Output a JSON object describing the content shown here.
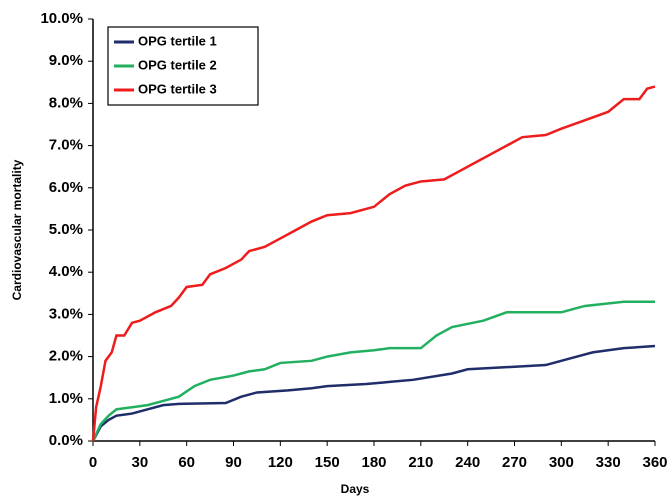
{
  "chart_data": {
    "type": "line",
    "x_label": "Days",
    "y_label": "Cardiovascular mortality",
    "xlim": [
      0,
      360
    ],
    "xticks": [
      0,
      30,
      60,
      90,
      120,
      150,
      180,
      210,
      240,
      270,
      300,
      330,
      360
    ],
    "ylim": [
      0,
      10
    ],
    "yticks": [
      {
        "value": 0,
        "label": "0.0%"
      },
      {
        "value": 1,
        "label": "1.0%"
      },
      {
        "value": 2,
        "label": "2.0%"
      },
      {
        "value": 3,
        "label": "3.0%"
      },
      {
        "value": 4,
        "label": "4.0%"
      },
      {
        "value": 5,
        "label": "5.0%"
      },
      {
        "value": 6,
        "label": "6.0%"
      },
      {
        "value": 7,
        "label": "7.0%"
      },
      {
        "value": 8,
        "label": "8.0%"
      },
      {
        "value": 9,
        "label": "9.0%"
      },
      {
        "value": 10,
        "label": "10.0%"
      }
    ],
    "grid": false,
    "legend": "top-left",
    "series": [
      {
        "name": "OPG tertile 1",
        "color": "#1f2d6b",
        "x": [
          0,
          5,
          10,
          15,
          25,
          35,
          45,
          55,
          85,
          95,
          105,
          125,
          140,
          150,
          175,
          190,
          205,
          230,
          240,
          265,
          290,
          305,
          320,
          340,
          360
        ],
        "values": [
          0,
          0.35,
          0.5,
          0.6,
          0.65,
          0.75,
          0.85,
          0.88,
          0.9,
          1.05,
          1.15,
          1.2,
          1.25,
          1.3,
          1.35,
          1.4,
          1.45,
          1.6,
          1.7,
          1.75,
          1.8,
          1.95,
          2.1,
          2.2,
          2.25
        ]
      },
      {
        "name": "OPG tertile 2",
        "color": "#22b060",
        "x": [
          0,
          5,
          10,
          15,
          25,
          35,
          45,
          55,
          65,
          75,
          90,
          100,
          110,
          120,
          140,
          150,
          165,
          180,
          190,
          210,
          220,
          230,
          250,
          265,
          300,
          315,
          340,
          360
        ],
        "values": [
          0,
          0.4,
          0.6,
          0.75,
          0.8,
          0.85,
          0.95,
          1.05,
          1.3,
          1.45,
          1.55,
          1.65,
          1.7,
          1.85,
          1.9,
          2.0,
          2.1,
          2.15,
          2.2,
          2.2,
          2.5,
          2.7,
          2.85,
          3.05,
          3.05,
          3.2,
          3.3,
          3.3
        ]
      },
      {
        "name": "OPG tertile 3",
        "color": "#ee1c1c",
        "x": [
          0,
          2,
          5,
          8,
          12,
          15,
          20,
          25,
          30,
          40,
          50,
          55,
          60,
          70,
          75,
          85,
          95,
          100,
          110,
          120,
          130,
          140,
          150,
          165,
          180,
          190,
          200,
          210,
          225,
          235,
          245,
          255,
          265,
          275,
          290,
          300,
          315,
          330,
          340,
          350,
          355,
          360
        ],
        "values": [
          0,
          0.8,
          1.3,
          1.9,
          2.1,
          2.5,
          2.5,
          2.8,
          2.85,
          3.05,
          3.2,
          3.4,
          3.65,
          3.7,
          3.95,
          4.1,
          4.3,
          4.5,
          4.6,
          4.8,
          5.0,
          5.2,
          5.35,
          5.4,
          5.55,
          5.85,
          6.05,
          6.15,
          6.2,
          6.4,
          6.6,
          6.8,
          7.0,
          7.2,
          7.25,
          7.4,
          7.6,
          7.8,
          8.1,
          8.1,
          8.35,
          8.4
        ]
      }
    ]
  }
}
